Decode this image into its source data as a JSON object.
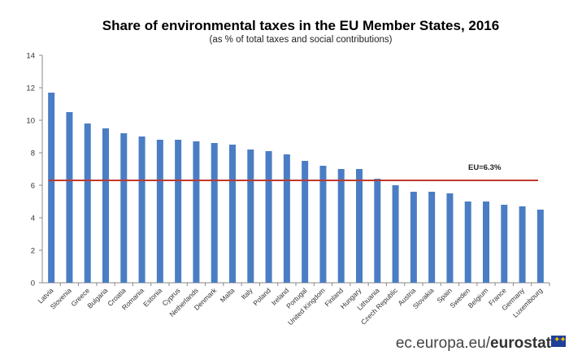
{
  "title": "Share of environmental taxes in the EU Member States, 2016",
  "subtitle": "(as % of total taxes and social contributions)",
  "footer": {
    "site": "ec.europa.eu/",
    "brand": "eurostat"
  },
  "colors": {
    "bar": "#4a7dc4",
    "reference_line": "#c0392b",
    "axis": "#888888"
  },
  "chart_data": {
    "type": "bar",
    "categories": [
      "Latvia",
      "Slovenia",
      "Greece",
      "Bulgaria",
      "Croatia",
      "Romania",
      "Estonia",
      "Cyprus",
      "Netherlands",
      "Denmark",
      "Malta",
      "Italy",
      "Poland",
      "Ireland",
      "Portugal",
      "United Kingdom",
      "Finland",
      "Hungary",
      "Lithuania",
      "Czech Republic",
      "Austria",
      "Slovakia",
      "Spain",
      "Sweden",
      "Belgium",
      "France",
      "Germany",
      "Luxembourg"
    ],
    "values": [
      11.7,
      10.5,
      9.8,
      9.5,
      9.2,
      9.0,
      8.8,
      8.8,
      8.7,
      8.6,
      8.5,
      8.2,
      8.1,
      7.9,
      7.5,
      7.2,
      7.0,
      7.0,
      6.4,
      6.0,
      5.6,
      5.6,
      5.5,
      5.0,
      5.0,
      4.8,
      4.7,
      4.5
    ],
    "reference": {
      "label": "EU=6.3%",
      "value": 6.3
    },
    "ylim": [
      0,
      14
    ],
    "yticks": [
      0,
      2,
      4,
      6,
      8,
      10,
      12,
      14
    ],
    "grid": false,
    "xlabel": "",
    "ylabel": ""
  }
}
